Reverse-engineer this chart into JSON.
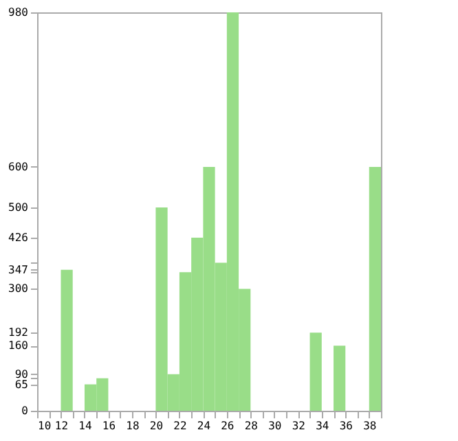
{
  "chart_data": {
    "type": "histogram",
    "bins": [
      10,
      11,
      12,
      13,
      14,
      15,
      16,
      17,
      18,
      19,
      20,
      21,
      22,
      23,
      24,
      25,
      26,
      27,
      28,
      29,
      30,
      31,
      32,
      33,
      34,
      35,
      36,
      37,
      38,
      39
    ],
    "values": [
      0,
      0,
      347,
      0,
      65,
      80,
      0,
      0,
      0,
      0,
      500,
      90,
      341,
      426,
      600,
      364,
      980,
      300,
      0,
      0,
      0,
      0,
      0,
      192,
      0,
      160,
      0,
      0,
      600
    ],
    "color": "#99dd88",
    "xlim": [
      10,
      39
    ],
    "xticks": [
      10,
      {
        "value": 11,
        "label": null
      },
      12,
      {
        "value": 13,
        "label": null
      },
      14,
      {
        "value": 15,
        "label": null
      },
      16,
      {
        "value": 17,
        "label": null
      },
      18,
      {
        "value": 19,
        "label": null
      },
      20,
      {
        "value": 21,
        "label": null
      },
      22,
      {
        "value": 23,
        "label": null
      },
      24,
      {
        "value": 25,
        "label": null
      },
      26,
      {
        "value": 27,
        "label": null
      },
      28,
      {
        "value": 29,
        "label": null
      },
      30,
      {
        "value": 31,
        "label": null
      },
      32,
      {
        "value": 33,
        "label": null
      },
      34,
      {
        "value": 35,
        "label": null
      },
      36,
      {
        "value": 37,
        "label": null
      },
      38,
      {
        "value": 39,
        "label": null
      }
    ],
    "ylim": [
      0,
      980
    ],
    "yticks": [
      0,
      65,
      {
        "value": 80,
        "label": null
      },
      90,
      160,
      192,
      300,
      {
        "value": 341,
        "label": null
      },
      347,
      {
        "value": 364,
        "label": null
      },
      426,
      500,
      600,
      980
    ],
    "grid": false
  }
}
